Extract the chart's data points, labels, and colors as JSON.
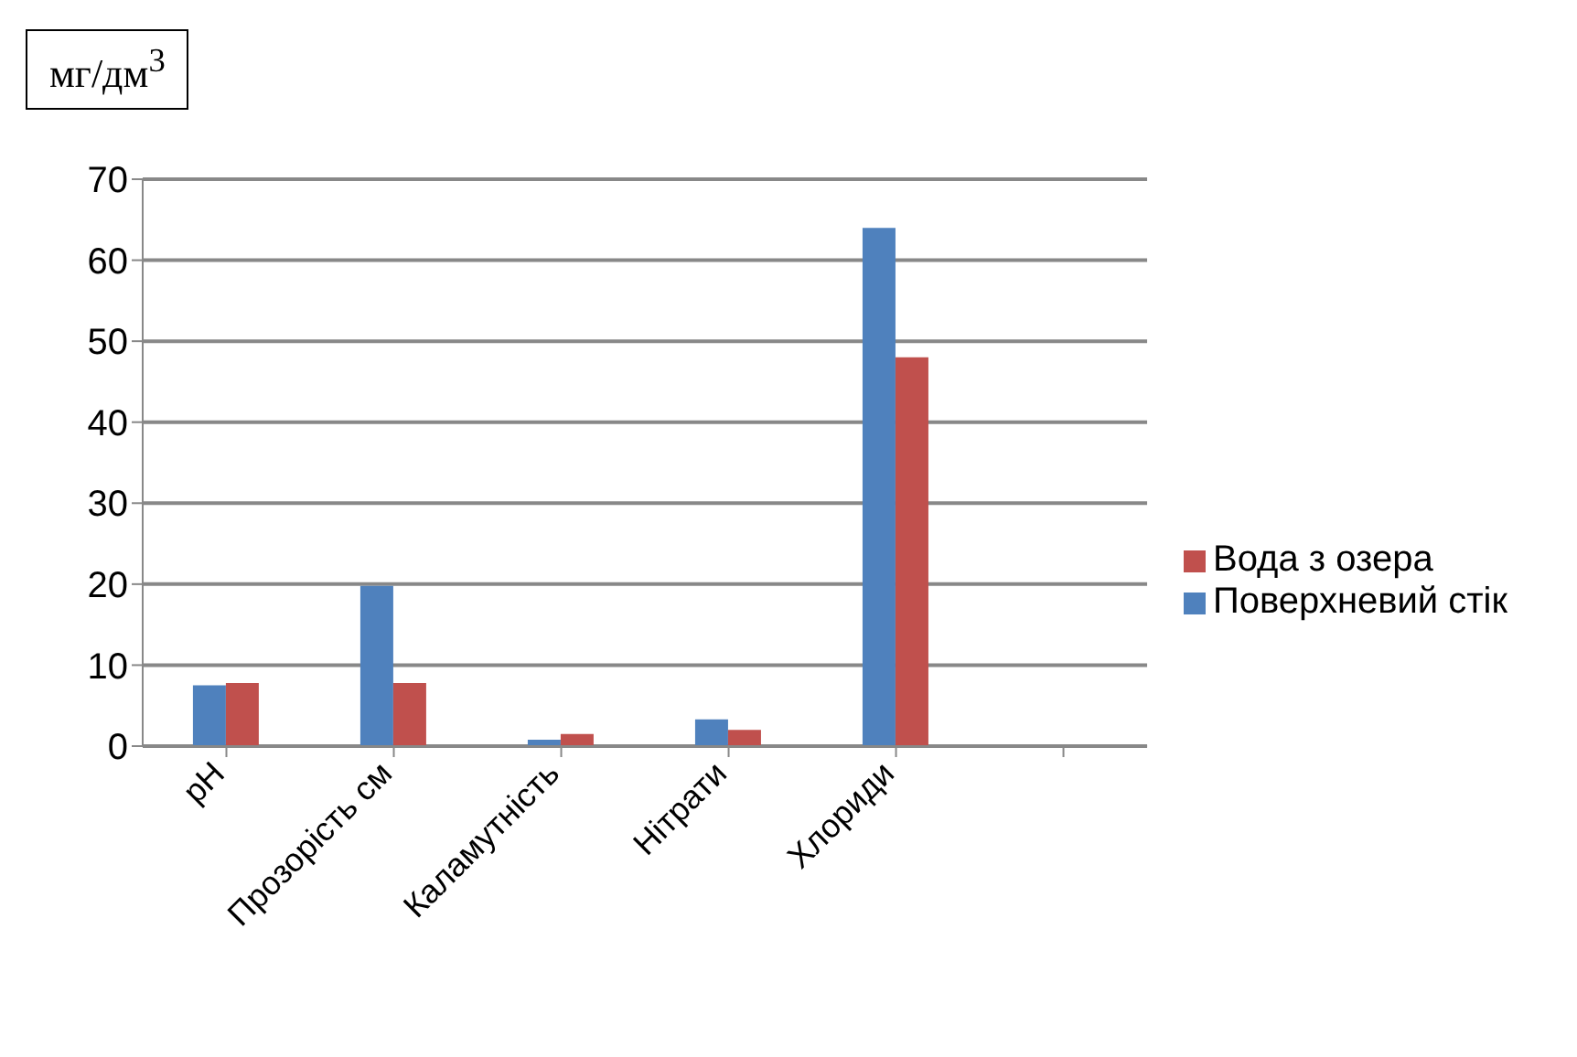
{
  "chart_data": {
    "type": "bar",
    "ylabel": "мг/дм$^{3}$",
    "categories": [
      "pH",
      "Прозорість см",
      "Каламутність",
      "Нітрати",
      "Хлориди",
      null
    ],
    "series": [
      {
        "name": "Поверхневий стік",
        "color": "#4f81bd",
        "values": [
          7.5,
          19.8,
          0.8,
          3.3,
          64,
          null
        ]
      },
      {
        "name": "Вода з озера",
        "color": "#c0504d",
        "values": [
          7.8,
          7.8,
          1.5,
          2,
          48,
          null
        ]
      }
    ],
    "ylim": [
      0,
      70
    ],
    "yticks": [
      0,
      10,
      20,
      30,
      40,
      50,
      60,
      70
    ],
    "grid": "y",
    "legend": "right"
  }
}
